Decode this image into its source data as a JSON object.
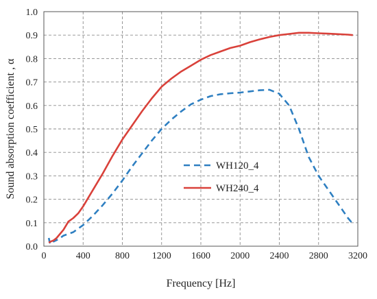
{
  "chart_data": {
    "type": "line",
    "title": "",
    "xlabel": "Frequency [Hz]",
    "ylabel": "Sound absorption coefficient , α",
    "xlim": [
      0,
      3200
    ],
    "ylim": [
      0,
      1.0
    ],
    "x_ticks": [
      "0",
      "400",
      "800",
      "1200",
      "1600",
      "2000",
      "2400",
      "2800",
      "3200"
    ],
    "y_ticks": [
      "0.0",
      "0.1",
      "0.2",
      "0.3",
      "0.4",
      "0.5",
      "0.6",
      "0.7",
      "0.8",
      "0.9",
      "1.0"
    ],
    "grid": true,
    "legend_position": "center",
    "series": [
      {
        "name": "WH120_4",
        "color": "#2e7fc1",
        "style": "dashed",
        "x": [
          50,
          60,
          80,
          100,
          150,
          200,
          300,
          400,
          500,
          600,
          700,
          800,
          900,
          1000,
          1100,
          1200,
          1300,
          1400,
          1500,
          1600,
          1700,
          1800,
          1900,
          2000,
          2100,
          2200,
          2300,
          2400,
          2500,
          2600,
          2700,
          2800,
          2900,
          3000,
          3100,
          3150
        ],
        "y": [
          0.035,
          0.015,
          0.03,
          0.02,
          0.03,
          0.045,
          0.06,
          0.09,
          0.13,
          0.175,
          0.225,
          0.28,
          0.34,
          0.395,
          0.45,
          0.5,
          0.54,
          0.575,
          0.605,
          0.625,
          0.64,
          0.648,
          0.652,
          0.655,
          0.66,
          0.665,
          0.667,
          0.65,
          0.6,
          0.5,
          0.38,
          0.3,
          0.24,
          0.18,
          0.12,
          0.095
        ]
      },
      {
        "name": "WH240_4",
        "color": "#d9413a",
        "style": "solid",
        "x": [
          50,
          70,
          100,
          130,
          160,
          200,
          250,
          300,
          350,
          400,
          500,
          600,
          700,
          800,
          900,
          1000,
          1100,
          1200,
          1300,
          1400,
          1500,
          1600,
          1700,
          1800,
          1900,
          2000,
          2100,
          2200,
          2300,
          2400,
          2500,
          2600,
          2700,
          2800,
          2900,
          3000,
          3100,
          3150
        ],
        "y": [
          0.015,
          0.02,
          0.025,
          0.035,
          0.05,
          0.07,
          0.105,
          0.12,
          0.14,
          0.17,
          0.24,
          0.31,
          0.385,
          0.455,
          0.515,
          0.575,
          0.63,
          0.68,
          0.715,
          0.745,
          0.77,
          0.795,
          0.815,
          0.83,
          0.845,
          0.855,
          0.87,
          0.882,
          0.892,
          0.9,
          0.905,
          0.91,
          0.91,
          0.908,
          0.906,
          0.904,
          0.902,
          0.9
        ]
      }
    ]
  }
}
